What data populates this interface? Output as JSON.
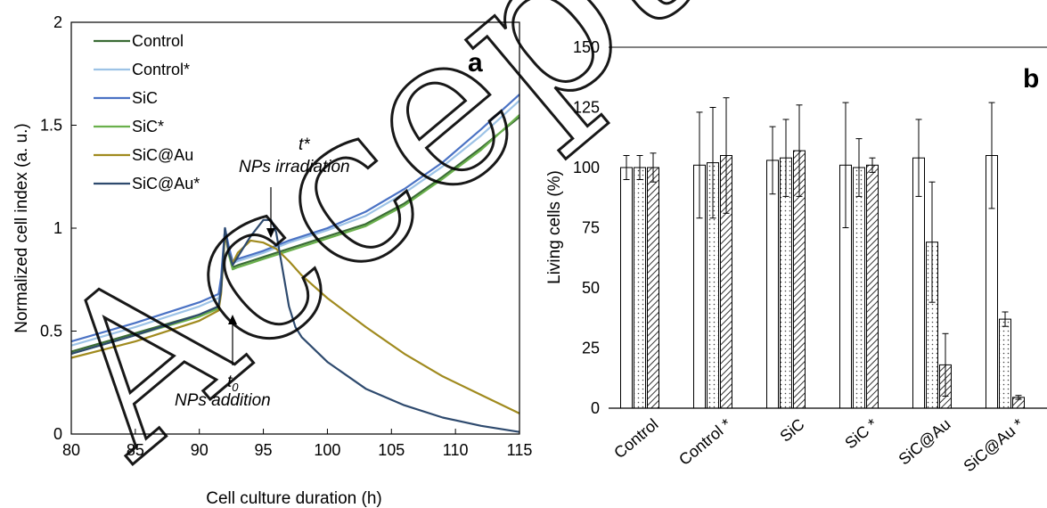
{
  "chart_data": [
    {
      "type": "line",
      "panel_label": "a",
      "xlabel": "Cell culture duration (h)",
      "ylabel": "Normalized cell index (a. u.)",
      "xlim": [
        80,
        115
      ],
      "ylim": [
        0,
        2
      ],
      "xticks": [
        80,
        85,
        90,
        95,
        100,
        105,
        110,
        115
      ],
      "yticks": [
        0,
        0.5,
        1,
        1.5,
        2
      ],
      "ytick_labels": [
        "0",
        "0.5",
        "1",
        "1.5",
        "2"
      ],
      "legend_position": "top-left",
      "annotations": {
        "t_star": "t*",
        "irradiation": "NPs irradiation",
        "t0_base": "t",
        "t0_sub": "0",
        "addition": "NPs addition"
      },
      "series": [
        {
          "name": "Control",
          "color": "#3a6b35",
          "points": [
            [
              80,
              0.4
            ],
            [
              85,
              0.49
            ],
            [
              90,
              0.58
            ],
            [
              91.5,
              0.62
            ],
            [
              91.7,
              0.7
            ],
            [
              92,
              0.99
            ],
            [
              92.3,
              0.88
            ],
            [
              92.6,
              0.81
            ],
            [
              93,
              0.82
            ],
            [
              94,
              0.84
            ],
            [
              95,
              0.86
            ],
            [
              97,
              0.9
            ],
            [
              100,
              0.96
            ],
            [
              103,
              1.02
            ],
            [
              106,
              1.12
            ],
            [
              109,
              1.25
            ],
            [
              112,
              1.39
            ],
            [
              115,
              1.54
            ]
          ]
        },
        {
          "name": "Control*",
          "color": "#9dc3e6",
          "points": [
            [
              80,
              0.43
            ],
            [
              85,
              0.52
            ],
            [
              90,
              0.62
            ],
            [
              91.5,
              0.66
            ],
            [
              91.7,
              0.74
            ],
            [
              92,
              1.0
            ],
            [
              92.3,
              0.9
            ],
            [
              92.6,
              0.83
            ],
            [
              93,
              0.84
            ],
            [
              94,
              0.86
            ],
            [
              95,
              0.88
            ],
            [
              97,
              0.93
            ],
            [
              100,
              0.99
            ],
            [
              103,
              1.06
            ],
            [
              106,
              1.17
            ],
            [
              109,
              1.3
            ],
            [
              112,
              1.45
            ],
            [
              115,
              1.62
            ]
          ]
        },
        {
          "name": "SiC",
          "color": "#4a72c4",
          "points": [
            [
              80,
              0.45
            ],
            [
              85,
              0.54
            ],
            [
              90,
              0.64
            ],
            [
              91.5,
              0.68
            ],
            [
              91.7,
              0.76
            ],
            [
              92,
              1.0
            ],
            [
              92.3,
              0.91
            ],
            [
              92.6,
              0.84
            ],
            [
              93,
              0.85
            ],
            [
              94,
              0.87
            ],
            [
              95,
              0.89
            ],
            [
              97,
              0.94
            ],
            [
              100,
              1.0
            ],
            [
              103,
              1.08
            ],
            [
              106,
              1.19
            ],
            [
              109,
              1.32
            ],
            [
              112,
              1.48
            ],
            [
              115,
              1.65
            ]
          ]
        },
        {
          "name": "SiC*",
          "color": "#6ab04c",
          "points": [
            [
              80,
              0.39
            ],
            [
              85,
              0.48
            ],
            [
              90,
              0.57
            ],
            [
              91.5,
              0.61
            ],
            [
              91.7,
              0.69
            ],
            [
              92,
              0.98
            ],
            [
              92.3,
              0.87
            ],
            [
              92.6,
              0.8
            ],
            [
              93,
              0.81
            ],
            [
              94,
              0.83
            ],
            [
              95,
              0.85
            ],
            [
              97,
              0.89
            ],
            [
              100,
              0.95
            ],
            [
              103,
              1.01
            ],
            [
              106,
              1.11
            ],
            [
              109,
              1.24
            ],
            [
              112,
              1.38
            ],
            [
              115,
              1.55
            ]
          ]
        },
        {
          "name": "SiC@Au",
          "color": "#a08a1e",
          "points": [
            [
              80,
              0.37
            ],
            [
              85,
              0.45
            ],
            [
              90,
              0.55
            ],
            [
              91.5,
              0.6
            ],
            [
              91.7,
              0.68
            ],
            [
              92,
              0.97
            ],
            [
              92.3,
              0.88
            ],
            [
              92.6,
              0.83
            ],
            [
              93,
              0.88
            ],
            [
              94,
              0.94
            ],
            [
              95,
              0.93
            ],
            [
              96,
              0.9
            ],
            [
              97,
              0.84
            ],
            [
              98,
              0.77
            ],
            [
              100,
              0.66
            ],
            [
              103,
              0.52
            ],
            [
              106,
              0.39
            ],
            [
              109,
              0.28
            ],
            [
              112,
              0.19
            ],
            [
              115,
              0.1
            ]
          ]
        },
        {
          "name": "SiC@Au*",
          "color": "#2e4a6e",
          "points": [
            [
              80,
              0.39
            ],
            [
              85,
              0.48
            ],
            [
              90,
              0.58
            ],
            [
              91.5,
              0.62
            ],
            [
              91.7,
              0.7
            ],
            [
              92,
              1.0
            ],
            [
              92.3,
              0.88
            ],
            [
              92.6,
              0.82
            ],
            [
              93,
              0.86
            ],
            [
              94,
              0.96
            ],
            [
              95,
              1.04
            ],
            [
              95.6,
              1.04
            ],
            [
              96,
              0.98
            ],
            [
              96.5,
              0.8
            ],
            [
              97,
              0.62
            ],
            [
              97.5,
              0.52
            ],
            [
              98,
              0.47
            ],
            [
              99,
              0.41
            ],
            [
              100,
              0.35
            ],
            [
              103,
              0.22
            ],
            [
              106,
              0.14
            ],
            [
              109,
              0.08
            ],
            [
              112,
              0.04
            ],
            [
              115,
              0.01
            ]
          ]
        }
      ]
    },
    {
      "type": "bar",
      "panel_label": "b",
      "ylabel": "Living cells (%)",
      "ylim": [
        0,
        150
      ],
      "yticks": [
        0,
        25,
        50,
        75,
        100,
        125,
        150
      ],
      "categories": [
        "Control",
        "Control *",
        "SiC",
        "SiC *",
        "SiC@Au",
        "SiC@Au *"
      ],
      "series": [
        {
          "pattern": "plain",
          "values": [
            100,
            101,
            103,
            101,
            104,
            105
          ],
          "errors": [
            5,
            22,
            14,
            26,
            16,
            22
          ]
        },
        {
          "pattern": "dotted",
          "values": [
            100,
            102,
            104,
            100,
            69,
            37
          ],
          "errors": [
            5,
            23,
            16,
            12,
            25,
            3
          ]
        },
        {
          "pattern": "hatched",
          "values": [
            100,
            105,
            107,
            101,
            18,
            4.5
          ],
          "errors": [
            6,
            24,
            19,
            3,
            13,
            0.8
          ]
        }
      ]
    }
  ]
}
